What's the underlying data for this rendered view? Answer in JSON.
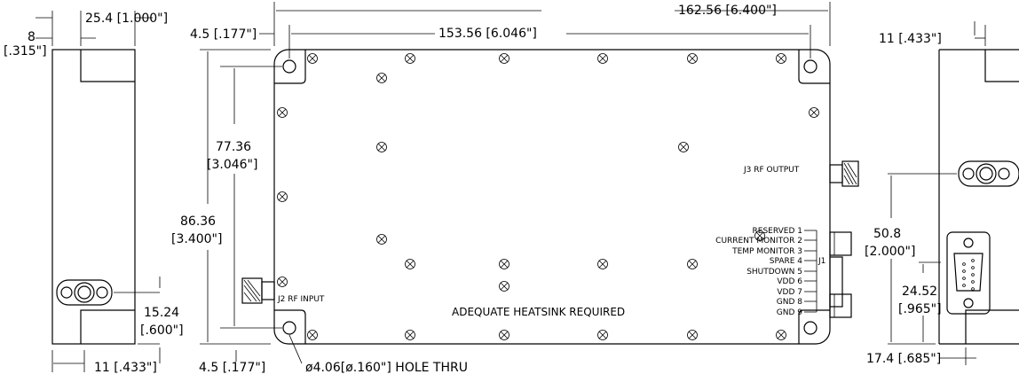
{
  "dims": {
    "overall_length": "162.56 [6.400\"]",
    "hole_spacing": "153.56 [6.046\"]",
    "edge_offset_top": "4.5 [.177\"]",
    "edge_offset_bottom": "4.5 [.177\"]",
    "hole_vertical_1": "77.36",
    "hole_vertical_2": "[3.046\"]",
    "overall_height_1": "86.36",
    "overall_height_2": "[3.400\"]",
    "hole_callout": "ø4.06[ø.160\"] HOLE THRU",
    "left_width": "25.4 [1.000\"]",
    "left_offset_1": "8",
    "left_offset_2": "[.315\"]",
    "left_bottom": "11 [.433\"]",
    "left_conn_height_1": "15.24",
    "left_conn_height_2": "[.600\"]",
    "right_top": "11  [.433\"]",
    "right_height_1": "50.8",
    "right_height_2": "[2.000\"]",
    "right_dsub_1": "24.52",
    "right_dsub_2": "[.965\"]",
    "right_bottom": "17.4 [.685\"]"
  },
  "labels": {
    "rf_input": "J2 RF INPUT",
    "rf_output": "J3 RF OUTPUT",
    "heatsink": "ADEQUATE HEATSINK REQUIRED",
    "connector_ref": "J1"
  },
  "pins": [
    "RESERVED 1",
    "CURRENT MONITOR 2",
    "TEMP MONITOR 3",
    "SPARE 4",
    "SHUTDOWN 5",
    "VDD 6",
    "VDD 7",
    "GND 8",
    "GND 9"
  ]
}
